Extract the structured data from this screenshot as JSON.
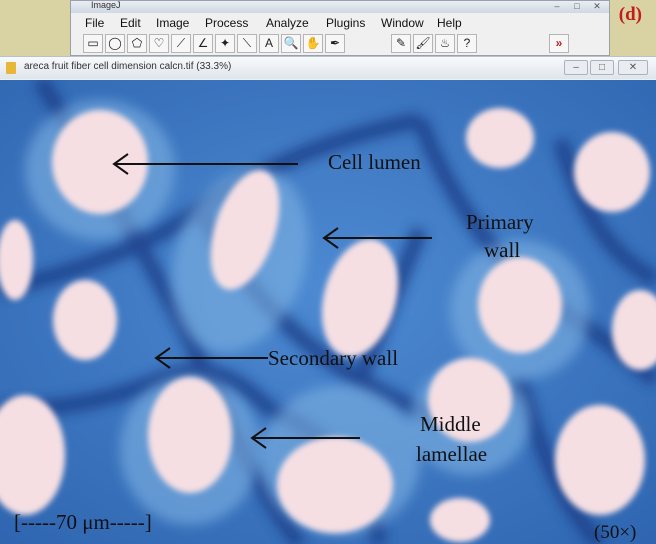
{
  "app": {
    "title": "ImageJ",
    "panel_label": "(d)",
    "menus": [
      "File",
      "Edit",
      "Image",
      "Process",
      "Analyze",
      "Plugins",
      "Window",
      "Help"
    ],
    "tools": [
      {
        "name": "rectangle-tool",
        "glyph": "▭"
      },
      {
        "name": "oval-tool",
        "glyph": "◯"
      },
      {
        "name": "polygon-tool",
        "glyph": "⬠"
      },
      {
        "name": "freehand-tool",
        "glyph": "♡"
      },
      {
        "name": "line-tool",
        "glyph": "⟋"
      },
      {
        "name": "angle-tool",
        "glyph": "∠"
      },
      {
        "name": "point-tool",
        "glyph": "✦"
      },
      {
        "name": "wand-tool",
        "glyph": "⟍"
      },
      {
        "name": "text-tool",
        "glyph": "A"
      },
      {
        "name": "magnifier-tool",
        "glyph": "🔍"
      },
      {
        "name": "hand-tool",
        "glyph": "✋"
      },
      {
        "name": "dropper-tool",
        "glyph": "✒"
      },
      {
        "name": "pencil-tool",
        "glyph": "✎"
      },
      {
        "name": "brush-tool",
        "glyph": "🖌"
      },
      {
        "name": "flood-fill-tool",
        "glyph": "♨"
      },
      {
        "name": "help-tool",
        "glyph": "?"
      },
      {
        "name": "more-tools",
        "glyph": "»"
      }
    ]
  },
  "image_window": {
    "title": "areca fruit fiber cell dimension calcn.tif (33.3%)",
    "controls": {
      "minimize": "–",
      "maximize": "□",
      "close": "✕"
    }
  },
  "annotations": {
    "cell_lumen": "Cell lumen",
    "primary_wall_1": "Primary",
    "primary_wall_2": "wall",
    "secondary_wall": "Secondary wall",
    "middle_lamellae_1": "Middle",
    "middle_lamellae_2": "lamellae",
    "scale_bar": "[-----70 μm-----]",
    "magnification": "(50×)"
  },
  "colors": {
    "cell_wall": "#3f7bc5",
    "cell_lumen": "#f6dfe3",
    "lamellae": "#1e3f8a",
    "panel_label": "#c01c1c"
  }
}
